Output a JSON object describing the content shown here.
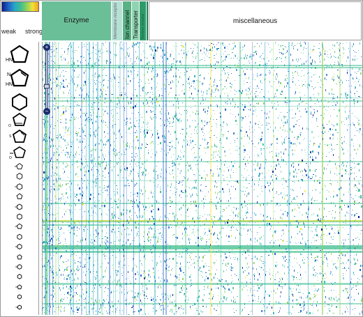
{
  "legend": {
    "weak_label": "weak",
    "strong_label": "strong",
    "colors": [
      "#0a1f8c",
      "#1f64c8",
      "#28a7c6",
      "#3fbf8f",
      "#8fd35a",
      "#f1e23a",
      "#f0a21c"
    ]
  },
  "categories": {
    "enzyme": "Enzyme",
    "gpcr": "Membrane receptor",
    "ion_channel": "Ion channel",
    "transporter": "Transporter",
    "nuclear_receptor": "Nuclear receptor",
    "misc": "miscellaneous"
  },
  "scaffolds": [
    {
      "icon": "pyrrolidine-icon",
      "labels": [
        "HN"
      ]
    },
    {
      "icon": "pyrazole-icon",
      "labels": [
        "N",
        "HN"
      ]
    },
    {
      "icon": "cyclohexane-icon",
      "labels": []
    },
    {
      "icon": "furan-icon",
      "labels": [
        "O"
      ]
    },
    {
      "icon": "thiophene-icon",
      "labels": [
        "S"
      ]
    },
    {
      "icon": "oxazole-icon",
      "labels": [
        "O"
      ]
    },
    {
      "icon": "scaffold-icon",
      "labels": []
    },
    {
      "icon": "scaffold-icon",
      "labels": []
    },
    {
      "icon": "scaffold-icon",
      "labels": []
    },
    {
      "icon": "scaffold-icon",
      "labels": []
    },
    {
      "icon": "scaffold-icon",
      "labels": []
    },
    {
      "icon": "scaffold-icon",
      "labels": []
    },
    {
      "icon": "scaffold-icon",
      "labels": []
    },
    {
      "icon": "scaffold-icon",
      "labels": []
    },
    {
      "icon": "scaffold-icon",
      "labels": []
    },
    {
      "icon": "scaffold-icon",
      "labels": []
    },
    {
      "icon": "scaffold-icon",
      "labels": []
    },
    {
      "icon": "scaffold-icon",
      "labels": []
    },
    {
      "icon": "scaffold-icon",
      "labels": []
    },
    {
      "icon": "scaffold-icon",
      "labels": []
    },
    {
      "icon": "scaffold-icon",
      "labels": []
    }
  ],
  "zoom": {
    "zoom_in_icon": "plus-icon",
    "zoom_out_icon": "minus-icon",
    "zoom_in_glyph": "+",
    "zoom_out_glyph": "−"
  }
}
